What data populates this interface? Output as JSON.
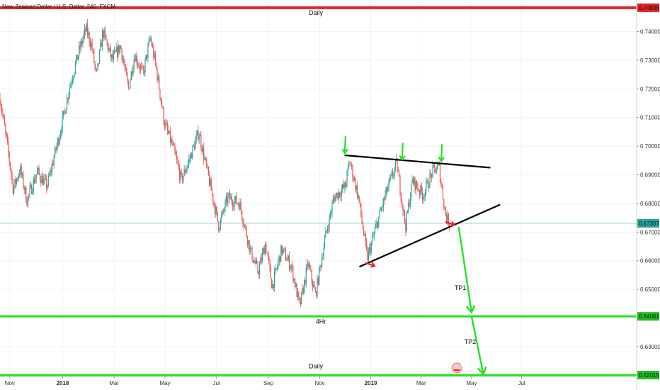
{
  "chart_data": {
    "type": "candlestick",
    "title": "New Zealand Dollar / U.S. Dollar, 240, FXCM",
    "ylim": [
      0.6196,
      0.751
    ],
    "xlim": [
      0,
      130
    ],
    "y_ticks": [
      {
        "value": 0.74,
        "label": "0.74000"
      },
      {
        "value": 0.73,
        "label": "0.73000"
      },
      {
        "value": 0.72,
        "label": "0.72000"
      },
      {
        "value": 0.71,
        "label": "0.71000"
      },
      {
        "value": 0.7,
        "label": "0.70000"
      },
      {
        "value": 0.69,
        "label": "0.69000"
      },
      {
        "value": 0.68,
        "label": "0.68000"
      },
      {
        "value": 0.67,
        "label": "0.67000"
      },
      {
        "value": 0.66,
        "label": "0.66000"
      },
      {
        "value": 0.65,
        "label": "0.65000"
      },
      {
        "value": 0.63,
        "label": "0.63000"
      }
    ],
    "x_ticks": [
      {
        "x": 2.0,
        "label": "Nov",
        "bold": false
      },
      {
        "x": 12.8,
        "label": "2018",
        "bold": true
      },
      {
        "x": 23.3,
        "label": "Mar",
        "bold": false
      },
      {
        "x": 33.7,
        "label": "May",
        "bold": false
      },
      {
        "x": 44.2,
        "label": "Jul",
        "bold": false
      },
      {
        "x": 54.8,
        "label": "Sep",
        "bold": false
      },
      {
        "x": 65.3,
        "label": "Nov",
        "bold": false
      },
      {
        "x": 75.7,
        "label": "2019",
        "bold": true
      },
      {
        "x": 86.0,
        "label": "Mar",
        "bold": false
      },
      {
        "x": 96.3,
        "label": "May",
        "bold": false
      },
      {
        "x": 106.5,
        "label": "Jul",
        "bold": false
      }
    ],
    "price_path": [
      [
        0,
        0.717
      ],
      [
        1.5,
        0.7
      ],
      [
        2.7,
        0.685
      ],
      [
        4.1,
        0.692
      ],
      [
        5.5,
        0.681
      ],
      [
        7.6,
        0.691
      ],
      [
        9.6,
        0.686
      ],
      [
        12.0,
        0.703
      ],
      [
        14.4,
        0.722
      ],
      [
        16.1,
        0.733
      ],
      [
        17.6,
        0.741
      ],
      [
        18.7,
        0.735
      ],
      [
        19.7,
        0.724
      ],
      [
        21.0,
        0.74
      ],
      [
        22.9,
        0.73
      ],
      [
        24.6,
        0.735
      ],
      [
        26.2,
        0.72
      ],
      [
        27.5,
        0.732
      ],
      [
        29.2,
        0.725
      ],
      [
        30.7,
        0.738
      ],
      [
        32.0,
        0.726
      ],
      [
        33.6,
        0.708
      ],
      [
        35.6,
        0.698
      ],
      [
        37.0,
        0.688
      ],
      [
        38.6,
        0.695
      ],
      [
        40.6,
        0.705
      ],
      [
        42.7,
        0.688
      ],
      [
        44.7,
        0.672
      ],
      [
        46.5,
        0.682
      ],
      [
        48.9,
        0.68
      ],
      [
        51.2,
        0.663
      ],
      [
        52.7,
        0.656
      ],
      [
        54.2,
        0.666
      ],
      [
        55.6,
        0.651
      ],
      [
        57.5,
        0.664
      ],
      [
        59.5,
        0.658
      ],
      [
        61.2,
        0.644
      ],
      [
        62.9,
        0.659
      ],
      [
        64.4,
        0.648
      ],
      [
        66.4,
        0.668
      ],
      [
        68.2,
        0.682
      ],
      [
        70.5,
        0.686
      ],
      [
        71.4,
        0.695
      ],
      [
        73.2,
        0.682
      ],
      [
        75.0,
        0.661
      ],
      [
        77.0,
        0.673
      ],
      [
        79.1,
        0.685
      ],
      [
        81.0,
        0.694
      ],
      [
        82.8,
        0.672
      ],
      [
        84.2,
        0.688
      ],
      [
        86.4,
        0.683
      ],
      [
        88.3,
        0.691
      ],
      [
        89.6,
        0.693
      ],
      [
        91.0,
        0.676
      ],
      [
        91.8,
        0.673
      ]
    ],
    "candle_seed": 7,
    "horizontal_levels": [
      {
        "value": 0.7483,
        "label": "0.74836",
        "color": "#e82020",
        "bg": "#e82020",
        "width": 4
      },
      {
        "value": 0.6406,
        "label": "0.64061",
        "color": "#22e222",
        "bg": "#22c022",
        "width": 3
      },
      {
        "value": 0.6201,
        "label": "0.62015",
        "color": "#22e222",
        "bg": "#22c022",
        "width": 3
      }
    ],
    "current_price": {
      "value": 0.67307,
      "label": "0.67307",
      "color": "#26a69a"
    },
    "trendlines": [
      {
        "from": [
          70.5,
          0.6968
        ],
        "to": [
          100.0,
          0.6925
        ],
        "color": "#000000"
      },
      {
        "from": [
          73.5,
          0.658
        ],
        "to": [
          102.0,
          0.6795
        ],
        "color": "#000000"
      }
    ],
    "green_arrows_down": [
      {
        "x": 70.4,
        "y": 0.6968
      },
      {
        "x": 82.1,
        "y": 0.6945
      },
      {
        "x": 90.1,
        "y": 0.694
      }
    ],
    "red_arrows": [
      {
        "x": 76.5,
        "y": 0.6582
      },
      {
        "x": 92.8,
        "y": 0.6725
      }
    ],
    "projection_arrows": [
      {
        "from": [
          93.7,
          0.6715
        ],
        "to": [
          96.3,
          0.642
        ]
      },
      {
        "from": [
          96.3,
          0.6405
        ],
        "to": [
          98.7,
          0.6205
        ]
      }
    ],
    "annotations": [
      {
        "text": "Daily",
        "x": 64.5,
        "y": 0.7458
      },
      {
        "text": "TP1",
        "x": 94.0,
        "y": 0.6498
      },
      {
        "text": "4Hr",
        "x": 65.5,
        "y": 0.638
      },
      {
        "text": "TP2",
        "x": 96.0,
        "y": 0.631
      },
      {
        "text": "Daily",
        "x": 64.5,
        "y": 0.6225
      }
    ],
    "event_badge": {
      "text": "2",
      "x": 93.3
    }
  }
}
